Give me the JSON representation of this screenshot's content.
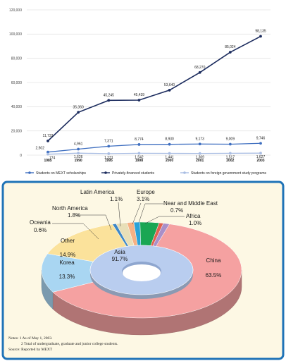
{
  "chart_data": [
    {
      "type": "line",
      "title": "",
      "xlabel": "",
      "ylabel": "",
      "ylim": [
        0,
        120000
      ],
      "yticks": [
        0,
        20000,
        40000,
        60000,
        80000,
        100000,
        120000
      ],
      "ytick_labels": [
        "0",
        "20,000",
        "40,000",
        "60,000",
        "80,000",
        "100,000",
        "120,000"
      ],
      "grid": true,
      "legend": "bottom",
      "categories": [
        "1985",
        "1990",
        "1995",
        "1998",
        "2000",
        "2001",
        "2002",
        "2003"
      ],
      "series": [
        {
          "name": "Students on MEXT scholarships",
          "color": "#3f6fc0",
          "values": [
            2502,
            4961,
            7371,
            8774,
            8930,
            9173,
            9009,
            9746
          ],
          "labels": [
            "2,502",
            "4,961",
            "7,371",
            "8,774",
            "8,930",
            "9,173",
            "9,009",
            "9,746"
          ]
        },
        {
          "name": "Privately-financed students",
          "color": "#1c2c5e",
          "values": [
            11733,
            35360,
            45245,
            45439,
            53640,
            68270,
            85024,
            98135
          ],
          "labels": [
            "11,733",
            "35,360",
            "45,245",
            "45,439",
            "53,640",
            "68,270",
            "85,024",
            "98,135"
          ]
        },
        {
          "name": "Students on foreign government study programs",
          "color": "#a9bde3",
          "values": [
            774,
            1626,
            1231,
            1542,
            1441,
            1369,
            1517,
            1627
          ],
          "labels": [
            "774",
            "1,626",
            "1,231",
            "1,542",
            "1,441",
            "1,369",
            "1,517",
            "1,627"
          ]
        }
      ]
    },
    {
      "type": "pie",
      "title": "",
      "style": "3d-donut",
      "inner_ring": [
        {
          "name": "Asia",
          "value": 91.7,
          "label": "91.7%",
          "color": "#b9cdef"
        }
      ],
      "slices": [
        {
          "name": "China",
          "value": 63.5,
          "label": "63.5%",
          "color": "#f5a1a1"
        },
        {
          "name": "Korea",
          "value": 13.3,
          "label": "13.3%",
          "color": "#a9d6f2"
        },
        {
          "name": "Other",
          "value": 14.9,
          "label": "14.9%",
          "color": "#fbe29b"
        },
        {
          "name": "Oceania",
          "value": 0.6,
          "label": "0.6%",
          "color": "#3f88c7"
        },
        {
          "name": "North America",
          "value": 1.8,
          "label": "1.8%",
          "color": "#e8dfb8"
        },
        {
          "name": "Latin America",
          "value": 1.1,
          "label": "1.1%",
          "color": "#f7b184"
        },
        {
          "name": "",
          "value": 1.0,
          "label": "",
          "color": "#2aa2d8"
        },
        {
          "name": "Europe",
          "value": 3.1,
          "label": "3.1%",
          "color": "#19a653"
        },
        {
          "name": "Near and Middle East",
          "value": 0.7,
          "label": "0.7%",
          "color": "#e0614f"
        },
        {
          "name": "Africa",
          "value": 1.0,
          "label": "1.0%",
          "color": "#a98fc8"
        }
      ]
    }
  ],
  "notes": {
    "line1": "Notes: 1  As of May 1, 2003.",
    "line2": "2  Total of undergraduate, graduate and junior college students.",
    "source": "Source: Reported by MEXT"
  },
  "colors": {
    "panel_border": "#1f73b7",
    "panel_bg": "#fdf8e4",
    "gridline": "#e4e4e4"
  }
}
